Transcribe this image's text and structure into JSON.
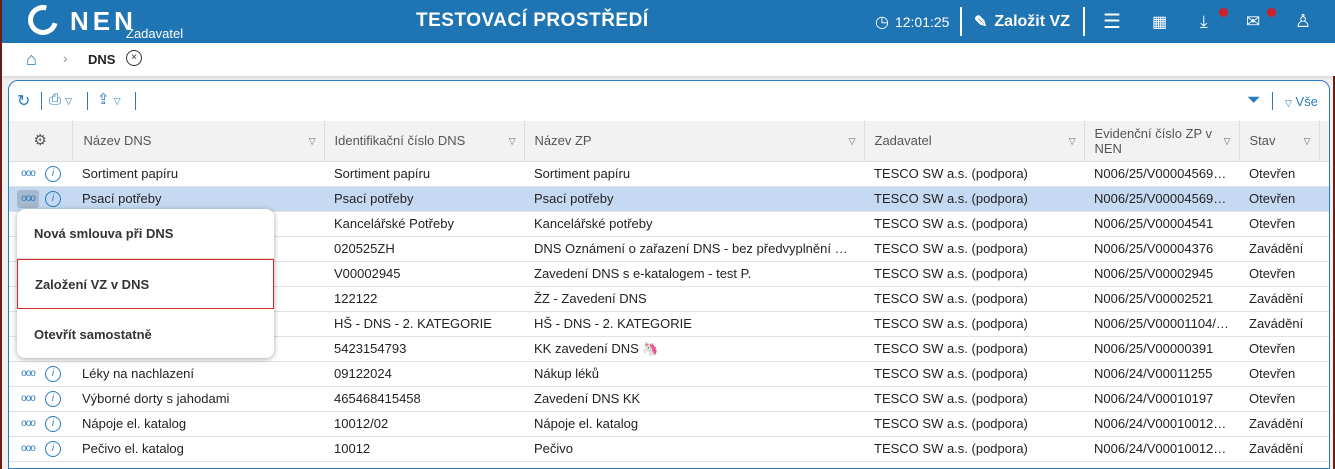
{
  "header": {
    "logo": "NEN",
    "role": "Zadavatel",
    "title": "TESTOVACÍ PROSTŘEDÍ",
    "time": "12:01:25",
    "create_label": "Založit VZ",
    "badge_color": "#d0202a",
    "brand_color": "#1f74b4"
  },
  "breadcrumb": {
    "current": "DNS"
  },
  "toolbar": {
    "filter_all": "Vše"
  },
  "columns": [
    "Název DNS",
    "Identifikační číslo DNS",
    "Název ZP",
    "Zadavatel",
    "Evidenční číslo ZP v NEN",
    "Stav"
  ],
  "rows": [
    {
      "nazev": "Sortiment papíru",
      "id": "Sortiment papíru",
      "zp": "Sortiment papíru",
      "zad": "TESCO SW a.s. (podpora)",
      "ev": "N006/25/V00004569/…",
      "stav": "Otevřen"
    },
    {
      "nazev": "Psací potřeby",
      "id": "Psací potřeby",
      "zp": "Psací potřeby",
      "zad": "TESCO SW a.s. (podpora)",
      "ev": "N006/25/V00004569/…",
      "stav": "Otevřen"
    },
    {
      "nazev": "",
      "id": "Kancelářské Potřeby",
      "zp": "Kancelářské potřeby",
      "zad": "TESCO SW a.s. (podpora)",
      "ev": "N006/25/V00004541",
      "stav": "Otevřen"
    },
    {
      "nazev": "",
      "id": "020525ZH",
      "zp": "DNS Oznámení o zařazení DNS - bez předvyplnění a m…",
      "zad": "TESCO SW a.s. (podpora)",
      "ev": "N006/25/V00004376",
      "stav": "Zavádění"
    },
    {
      "nazev": "",
      "id": "V00002945",
      "zp": "Zavedení DNS s e-katalogem - test P.",
      "zad": "TESCO SW a.s. (podpora)",
      "ev": "N006/25/V00002945",
      "stav": "Otevřen"
    },
    {
      "nazev": "",
      "id": "122122",
      "zp": "ŽZ - Zavedení DNS",
      "zad": "TESCO SW a.s. (podpora)",
      "ev": "N006/25/V00002521",
      "stav": "Zavádění"
    },
    {
      "nazev": "",
      "id": "HŠ - DNS - 2. KATEGORIE",
      "zp": "HŠ - DNS - 2. KATEGORIE",
      "zad": "TESCO SW a.s. (podpora)",
      "ev": "N006/25/V00001104/…",
      "stav": "Zavádění"
    },
    {
      "nazev": "",
      "id": "5423154793",
      "zp": "KK zavedení DNS 🦄",
      "zad": "TESCO SW a.s. (podpora)",
      "ev": "N006/25/V00000391",
      "stav": "Otevřen"
    },
    {
      "nazev": "Léky na nachlazení",
      "id": "09122024",
      "zp": "Nákup léků",
      "zad": "TESCO SW a.s. (podpora)",
      "ev": "N006/24/V00011255",
      "stav": "Otevřen"
    },
    {
      "nazev": "Výborné dorty s jahodami",
      "id": "465468415458",
      "zp": "Zavedení DNS KK",
      "zad": "TESCO SW a.s. (podpora)",
      "ev": "N006/24/V00010197",
      "stav": "Otevřen"
    },
    {
      "nazev": "Nápoje el. katalog",
      "id": "10012/02",
      "zp": "Nápoje el. katalog",
      "zad": "TESCO SW a.s. (podpora)",
      "ev": "N006/24/V00010012/…",
      "stav": "Zavádění"
    },
    {
      "nazev": "Pečivo el. katalog",
      "id": "10012",
      "zp": "Pečivo",
      "zad": "TESCO SW a.s. (podpora)",
      "ev": "N006/24/V00010012/…",
      "stav": "Zavádění"
    }
  ],
  "context_menu": {
    "items": [
      "Nová smlouva při DNS",
      "Založení VZ v DNS",
      "Otevřít samostatně"
    ],
    "highlighted": 1
  }
}
